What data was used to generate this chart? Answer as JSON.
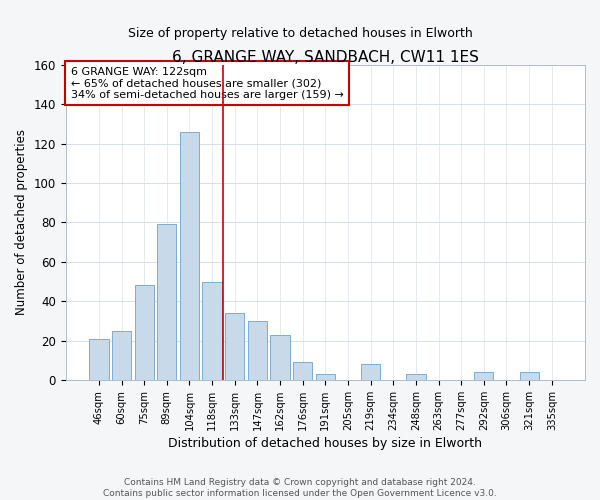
{
  "title": "6, GRANGE WAY, SANDBACH, CW11 1ES",
  "subtitle": "Size of property relative to detached houses in Elworth",
  "xlabel": "Distribution of detached houses by size in Elworth",
  "ylabel": "Number of detached properties",
  "bar_labels": [
    "46sqm",
    "60sqm",
    "75sqm",
    "89sqm",
    "104sqm",
    "118sqm",
    "133sqm",
    "147sqm",
    "162sqm",
    "176sqm",
    "191sqm",
    "205sqm",
    "219sqm",
    "234sqm",
    "248sqm",
    "263sqm",
    "277sqm",
    "292sqm",
    "306sqm",
    "321sqm",
    "335sqm"
  ],
  "bar_values": [
    21,
    25,
    48,
    79,
    126,
    50,
    34,
    30,
    23,
    9,
    3,
    0,
    8,
    0,
    3,
    0,
    0,
    4,
    0,
    4,
    0
  ],
  "bar_color": "#c8daea",
  "bar_edge_color": "#7aaed6",
  "ylim": [
    0,
    160
  ],
  "yticks": [
    0,
    20,
    40,
    60,
    80,
    100,
    120,
    140,
    160
  ],
  "vline_x": 5.5,
  "vline_color": "#cc0000",
  "annotation_title": "6 GRANGE WAY: 122sqm",
  "annotation_line1": "← 65% of detached houses are smaller (302)",
  "annotation_line2": "34% of semi-detached houses are larger (159) →",
  "footer_line1": "Contains HM Land Registry data © Crown copyright and database right 2024.",
  "footer_line2": "Contains public sector information licensed under the Open Government Licence v3.0.",
  "background_color": "#f4f6f8",
  "plot_background_color": "#ffffff"
}
